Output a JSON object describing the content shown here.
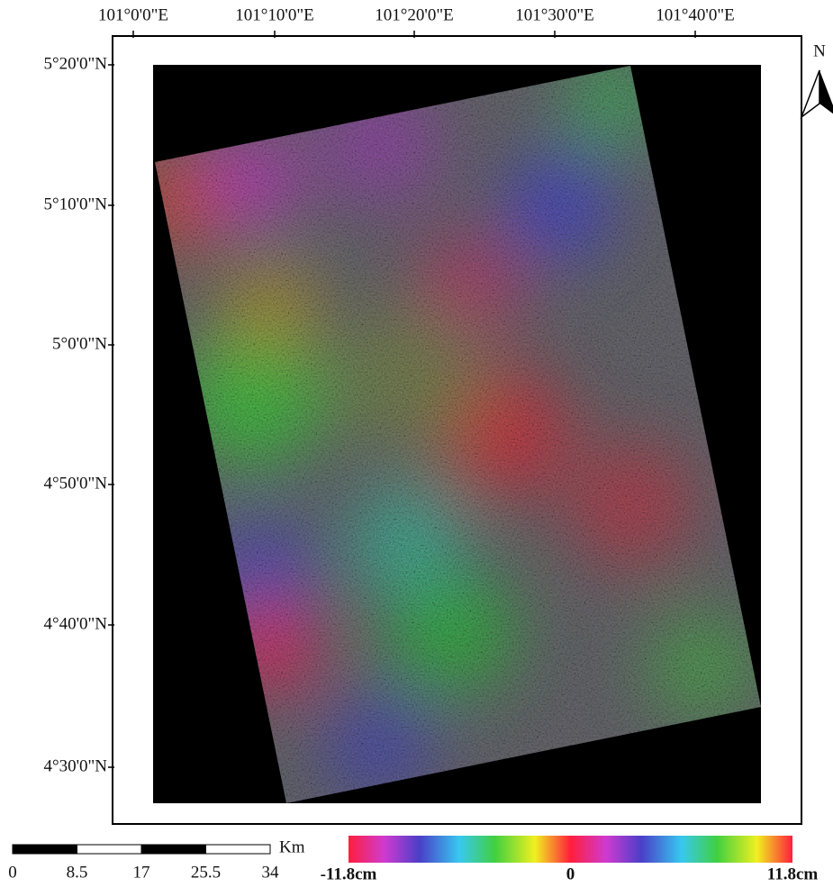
{
  "map": {
    "north_label": "N",
    "longitude_labels": [
      "101°0'0\"E",
      "101°10'0\"E",
      "101°20'0\"E",
      "101°30'0\"E",
      "101°40'0\"E"
    ],
    "latitude_labels": [
      "5°20'0\"N",
      "5°10'0\"N",
      "5°0'0\"N",
      "4°50'0\"N",
      "4°40'0\"N",
      "4°30'0\"N"
    ],
    "scale_bar": {
      "unit": "Km",
      "ticks": [
        0,
        8.5,
        17,
        25.5,
        34
      ]
    },
    "color_bar": {
      "ticks": [
        {
          "value": -11.8,
          "label": "-11.8cm"
        },
        0,
        {
          "value": 11.8,
          "label": "11.8cm"
        }
      ]
    }
  }
}
